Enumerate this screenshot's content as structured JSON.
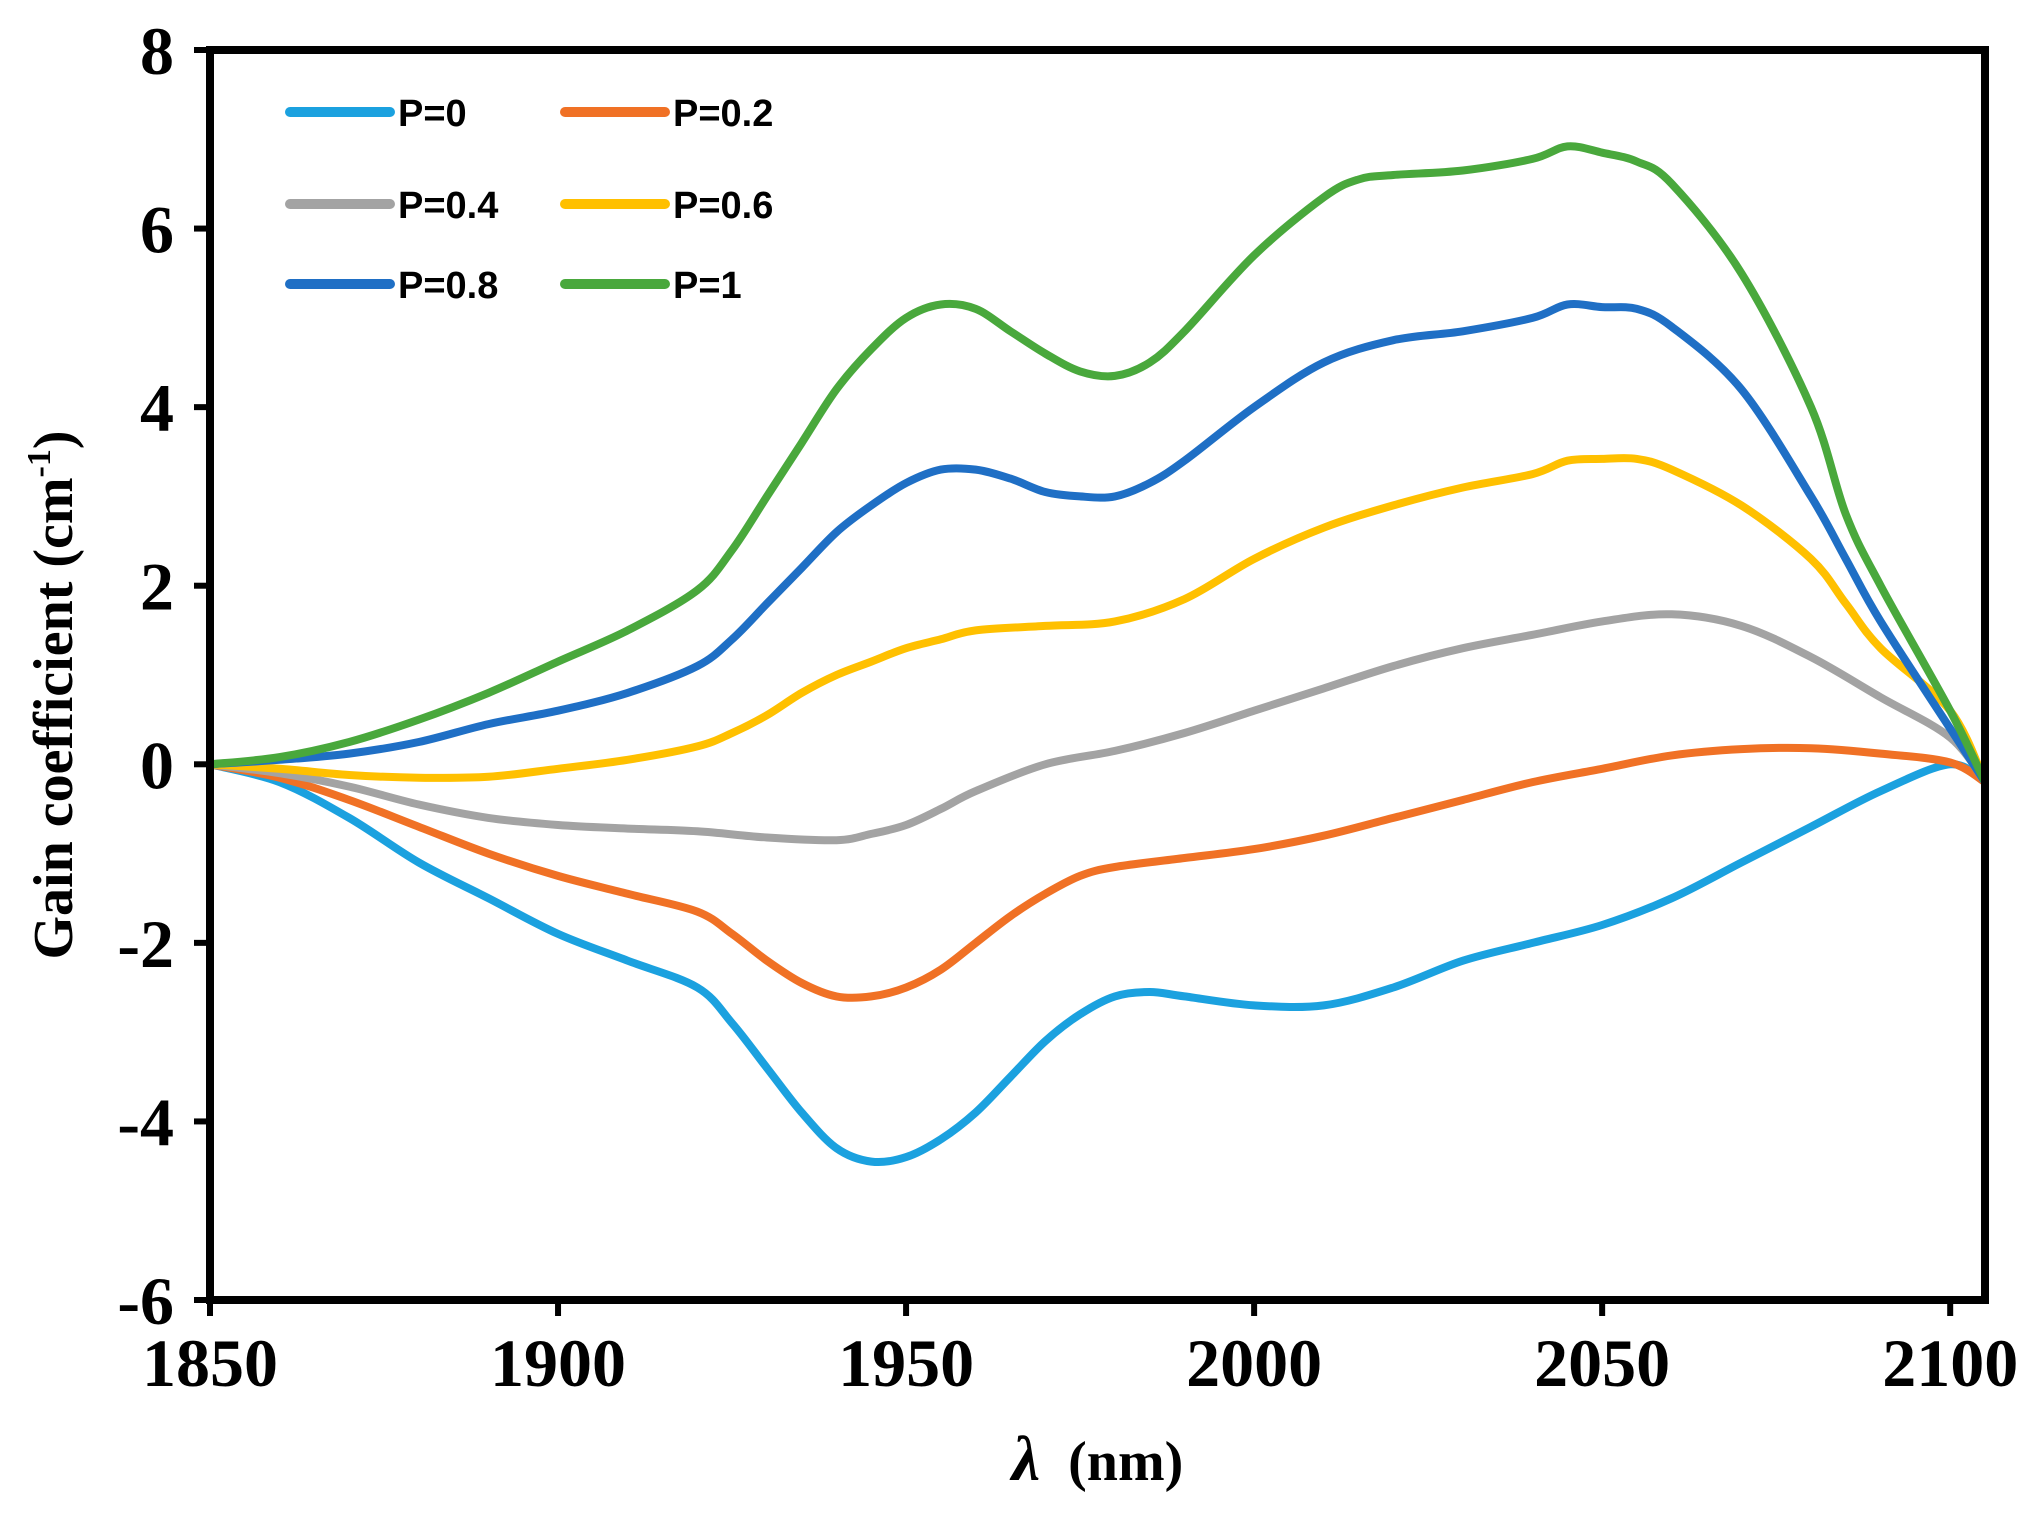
{
  "chart_data": {
    "type": "line",
    "title": "",
    "xlabel_symbol": "λ",
    "xlabel_unit": "(nm)",
    "ylabel_main": "Gain coefficient (cm",
    "ylabel_sup": "-1",
    "ylabel_close": ")",
    "xlim": [
      1850,
      2105
    ],
    "ylim": [
      -6,
      8
    ],
    "xticks": [
      1850,
      1900,
      1950,
      2000,
      2050,
      2100
    ],
    "yticks": [
      -6,
      -4,
      -2,
      0,
      2,
      4,
      6,
      8
    ],
    "grid": false,
    "legend_position": "top-left",
    "series": [
      {
        "name": "P=0",
        "color": "#1ba1df",
        "x": [
          1850,
          1860,
          1870,
          1880,
          1890,
          1900,
          1910,
          1920,
          1925,
          1930,
          1935,
          1940,
          1945,
          1950,
          1955,
          1960,
          1965,
          1970,
          1975,
          1980,
          1985,
          1990,
          2000,
          2010,
          2020,
          2030,
          2040,
          2050,
          2060,
          2070,
          2080,
          2090,
          2100,
          2105
        ],
        "y": [
          0,
          -0.2,
          -0.6,
          -1.1,
          -1.5,
          -1.9,
          -2.2,
          -2.5,
          -2.9,
          -3.4,
          -3.9,
          -4.3,
          -4.45,
          -4.4,
          -4.2,
          -3.9,
          -3.5,
          -3.1,
          -2.8,
          -2.6,
          -2.55,
          -2.6,
          -2.7,
          -2.7,
          -2.5,
          -2.2,
          -2.0,
          -1.8,
          -1.5,
          -1.1,
          -0.7,
          -0.3,
          0,
          -0.2
        ]
      },
      {
        "name": "P=0.2",
        "color": "#f07125",
        "x": [
          1850,
          1860,
          1870,
          1880,
          1890,
          1900,
          1910,
          1920,
          1925,
          1930,
          1935,
          1940,
          1945,
          1950,
          1955,
          1960,
          1965,
          1970,
          1975,
          1980,
          1990,
          2000,
          2010,
          2020,
          2030,
          2040,
          2050,
          2060,
          2070,
          2080,
          2090,
          2100,
          2105
        ],
        "y": [
          0,
          -0.15,
          -0.4,
          -0.7,
          -1.0,
          -1.25,
          -1.45,
          -1.65,
          -1.9,
          -2.2,
          -2.45,
          -2.6,
          -2.6,
          -2.5,
          -2.3,
          -2.0,
          -1.7,
          -1.45,
          -1.25,
          -1.15,
          -1.05,
          -0.95,
          -0.8,
          -0.6,
          -0.4,
          -0.2,
          -0.05,
          0.1,
          0.17,
          0.18,
          0.12,
          0.02,
          -0.2
        ]
      },
      {
        "name": "P=0.4",
        "color": "#a3a3a3",
        "x": [
          1850,
          1860,
          1870,
          1880,
          1890,
          1900,
          1910,
          1920,
          1930,
          1940,
          1945,
          1950,
          1955,
          1960,
          1970,
          1980,
          1990,
          2000,
          2010,
          2020,
          2030,
          2040,
          2050,
          2060,
          2070,
          2080,
          2090,
          2100,
          2105
        ],
        "y": [
          0,
          -0.1,
          -0.25,
          -0.45,
          -0.6,
          -0.68,
          -0.72,
          -0.75,
          -0.82,
          -0.85,
          -0.78,
          -0.68,
          -0.5,
          -0.3,
          0.0,
          0.15,
          0.35,
          0.6,
          0.85,
          1.1,
          1.3,
          1.45,
          1.6,
          1.68,
          1.55,
          1.2,
          0.75,
          0.3,
          -0.2
        ]
      },
      {
        "name": "P=0.6",
        "color": "#ffc000",
        "x": [
          1850,
          1860,
          1870,
          1880,
          1890,
          1900,
          1910,
          1920,
          1925,
          1930,
          1935,
          1940,
          1945,
          1950,
          1955,
          1960,
          1970,
          1980,
          1990,
          2000,
          2010,
          2020,
          2030,
          2040,
          2045,
          2050,
          2055,
          2060,
          2070,
          2080,
          2085,
          2090,
          2100,
          2105
        ],
        "y": [
          0,
          -0.05,
          -0.12,
          -0.15,
          -0.14,
          -0.05,
          0.05,
          0.2,
          0.35,
          0.55,
          0.8,
          1.0,
          1.15,
          1.3,
          1.4,
          1.5,
          1.55,
          1.6,
          1.85,
          2.3,
          2.65,
          2.9,
          3.1,
          3.25,
          3.4,
          3.42,
          3.42,
          3.3,
          2.9,
          2.3,
          1.8,
          1.3,
          0.6,
          -0.2
        ]
      },
      {
        "name": "P=0.8",
        "color": "#1f6fc5",
        "x": [
          1850,
          1860,
          1870,
          1880,
          1890,
          1900,
          1910,
          1920,
          1925,
          1930,
          1935,
          1940,
          1945,
          1950,
          1955,
          1960,
          1965,
          1970,
          1975,
          1980,
          1985,
          1990,
          2000,
          2010,
          2020,
          2030,
          2040,
          2045,
          2050,
          2055,
          2060,
          2070,
          2080,
          2085,
          2090,
          2100,
          2105
        ],
        "y": [
          0,
          0.05,
          0.12,
          0.25,
          0.45,
          0.6,
          0.8,
          1.1,
          1.4,
          1.8,
          2.2,
          2.6,
          2.9,
          3.15,
          3.3,
          3.3,
          3.2,
          3.05,
          3.0,
          3.0,
          3.15,
          3.4,
          4.0,
          4.5,
          4.75,
          4.85,
          5.0,
          5.15,
          5.12,
          5.1,
          4.9,
          4.2,
          3.0,
          2.3,
          1.6,
          0.4,
          -0.2
        ]
      },
      {
        "name": "P=1",
        "color": "#49a83c",
        "x": [
          1850,
          1860,
          1870,
          1880,
          1890,
          1900,
          1910,
          1920,
          1925,
          1930,
          1935,
          1940,
          1945,
          1950,
          1955,
          1960,
          1965,
          1970,
          1975,
          1980,
          1985,
          1990,
          2000,
          2010,
          2015,
          2020,
          2030,
          2040,
          2045,
          2050,
          2055,
          2060,
          2070,
          2080,
          2085,
          2090,
          2100,
          2105
        ],
        "y": [
          0,
          0.08,
          0.25,
          0.5,
          0.8,
          1.15,
          1.5,
          1.95,
          2.4,
          3.0,
          3.6,
          4.2,
          4.65,
          5.0,
          5.15,
          5.1,
          4.85,
          4.6,
          4.4,
          4.35,
          4.5,
          4.85,
          5.7,
          6.35,
          6.55,
          6.6,
          6.65,
          6.78,
          6.92,
          6.85,
          6.75,
          6.5,
          5.5,
          4.0,
          2.8,
          2.0,
          0.6,
          -0.2
        ]
      }
    ]
  }
}
